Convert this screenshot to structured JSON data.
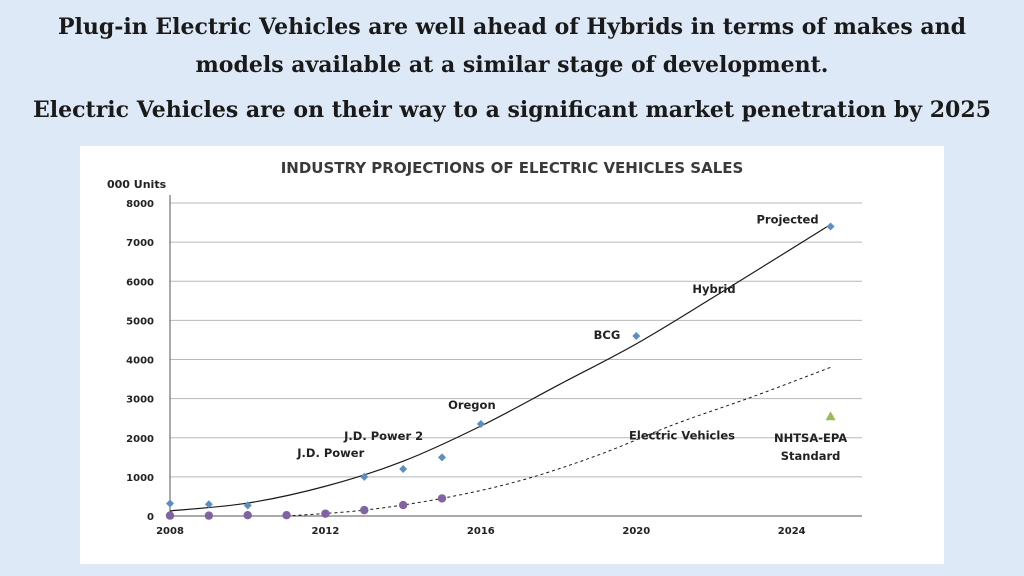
{
  "slide": {
    "title_line1": "Plug-in Electric Vehicles are well ahead of Hybrids in terms of makes and",
    "title_line2": "models available at a similar stage of development.",
    "subtitle": "Electric Vehicles are on their way to a significant market penetration by 2025"
  },
  "chart_data": {
    "type": "scatter",
    "title": "INDUSTRY PROJECTIONS OF ELECTRIC VEHICLES SALES",
    "ylabel": "000 Units",
    "xlim": [
      2008,
      2025.5
    ],
    "ylim": [
      0,
      8000
    ],
    "x_ticks": [
      2008,
      2012,
      2016,
      2020,
      2024
    ],
    "y_ticks": [
      0,
      1000,
      2000,
      3000,
      4000,
      5000,
      6000,
      7000,
      8000
    ],
    "grid": true,
    "series": [
      {
        "name": "Hybrid",
        "kind": "points",
        "color": "#5b8fc0",
        "marker": "diamond",
        "points": [
          {
            "x": 2008,
            "y": 320
          },
          {
            "x": 2009,
            "y": 300
          },
          {
            "x": 2010,
            "y": 270
          },
          {
            "x": 2013,
            "y": 1000
          },
          {
            "x": 2014,
            "y": 1200
          },
          {
            "x": 2015,
            "y": 1500
          },
          {
            "x": 2016,
            "y": 2350
          },
          {
            "x": 2020,
            "y": 4600
          },
          {
            "x": 2025,
            "y": 7400
          }
        ]
      },
      {
        "name": "Electric Vehicles",
        "kind": "points",
        "color": "#8064a2",
        "marker": "circle",
        "points": [
          {
            "x": 2008,
            "y": 10
          },
          {
            "x": 2009,
            "y": 10
          },
          {
            "x": 2010,
            "y": 20
          },
          {
            "x": 2011,
            "y": 20
          },
          {
            "x": 2012,
            "y": 60
          },
          {
            "x": 2013,
            "y": 150
          },
          {
            "x": 2014,
            "y": 280
          },
          {
            "x": 2015,
            "y": 450
          }
        ]
      },
      {
        "name": "NHTSA-EPA Standard",
        "kind": "points",
        "color": "#9bbb59",
        "marker": "triangle",
        "points": [
          {
            "x": 2025,
            "y": 2550
          }
        ]
      },
      {
        "name": "Hybrid trend",
        "kind": "curve",
        "color": "#1a1a1a",
        "dashed": false,
        "points": [
          {
            "x": 2008,
            "y": 130
          },
          {
            "x": 2010,
            "y": 330
          },
          {
            "x": 2012,
            "y": 760
          },
          {
            "x": 2014,
            "y": 1400
          },
          {
            "x": 2016,
            "y": 2300
          },
          {
            "x": 2018,
            "y": 3350
          },
          {
            "x": 2020,
            "y": 4400
          },
          {
            "x": 2022,
            "y": 5600
          },
          {
            "x": 2025,
            "y": 7450
          }
        ]
      },
      {
        "name": "EV trend",
        "kind": "curve",
        "color": "#1a1a1a",
        "dashed": true,
        "points": [
          {
            "x": 2011,
            "y": 0
          },
          {
            "x": 2013,
            "y": 150
          },
          {
            "x": 2015,
            "y": 450
          },
          {
            "x": 2017,
            "y": 900
          },
          {
            "x": 2019,
            "y": 1550
          },
          {
            "x": 2021,
            "y": 2350
          },
          {
            "x": 2023,
            "y": 3050
          },
          {
            "x": 2025,
            "y": 3800
          }
        ]
      }
    ],
    "annotations": [
      {
        "text": "Projected",
        "x": 2025,
        "y": 7400
      },
      {
        "text": "Hybrid",
        "x": 2022,
        "y": 5550
      },
      {
        "text": "BCG",
        "x": 2020,
        "y": 4600
      },
      {
        "text": "Oregon",
        "x": 2016,
        "y": 2350
      },
      {
        "text": "J.D. Power 2",
        "x": 2014,
        "y": 1200
      },
      {
        "text": "J.D. Power",
        "x": 2013,
        "y": 1000
      },
      {
        "text": "Electric Vehicles",
        "x": 2022,
        "y": 1950
      },
      {
        "text": "NHTSA-EPA",
        "x": 2025,
        "y": 2550
      },
      {
        "text": "Standard",
        "x": 2025,
        "y": 2550
      }
    ]
  }
}
